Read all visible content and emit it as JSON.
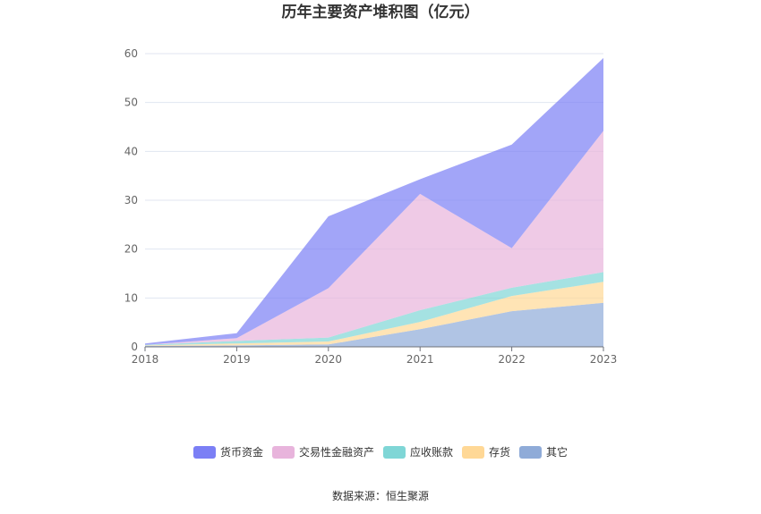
{
  "chart_data": {
    "type": "area",
    "stacked": true,
    "title": "历年主要资产堆积图（亿元）",
    "x": [
      "2018",
      "2019",
      "2020",
      "2021",
      "2022",
      "2023"
    ],
    "ylim": [
      0,
      60
    ],
    "yticks": [
      "0",
      "10",
      "20",
      "30",
      "40",
      "50",
      "60"
    ],
    "grid": true,
    "legend_position": "bottom",
    "series": [
      {
        "name": "其它",
        "color": "#8fabd8",
        "values": [
          0.2,
          0.3,
          0.5,
          3.6,
          7.3,
          9.0
        ]
      },
      {
        "name": "存货",
        "color": "#ffd896",
        "values": [
          0.1,
          0.4,
          0.6,
          1.5,
          3.1,
          4.3
        ]
      },
      {
        "name": "应收账款",
        "color": "#7fd6d6",
        "values": [
          0.1,
          0.5,
          0.8,
          2.4,
          1.7,
          2.0
        ]
      },
      {
        "name": "交易性金融资产",
        "color": "#e8b4dc",
        "values": [
          0.0,
          0.6,
          10.1,
          23.8,
          8.1,
          28.9
        ]
      },
      {
        "name": "货币资金",
        "color": "#7b7ff5",
        "values": [
          0.3,
          1.0,
          14.7,
          3.0,
          21.2,
          14.9
        ]
      }
    ],
    "legend_order": [
      "货币资金",
      "交易性金融资产",
      "应收账款",
      "存货",
      "其它"
    ]
  },
  "footer": {
    "source": "数据来源：恒生聚源"
  }
}
